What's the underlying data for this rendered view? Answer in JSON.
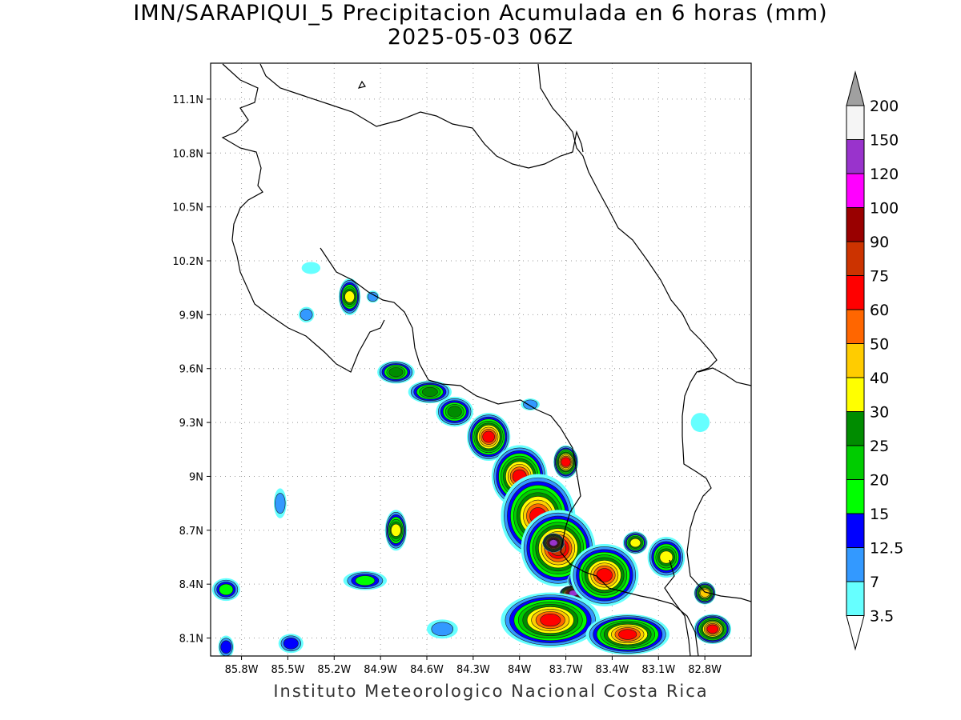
{
  "title": {
    "line1": "IMN/SARAPIQUI_5 Precipitacion Acumulada en 6 horas (mm)",
    "line2": "2025-05-03 06Z"
  },
  "footer": "Instituto Meteorologico Nacional Costa Rica",
  "map": {
    "lon_range": [
      -86.0,
      -82.5
    ],
    "lat_range": [
      8.0,
      11.3
    ],
    "grid": true,
    "lon_ticks": [
      {
        "v": -85.8,
        "label": "85.8W"
      },
      {
        "v": -85.5,
        "label": "85.5W"
      },
      {
        "v": -85.2,
        "label": "85.2W"
      },
      {
        "v": -84.9,
        "label": "84.9W"
      },
      {
        "v": -84.6,
        "label": "84.6W"
      },
      {
        "v": -84.3,
        "label": "84.3W"
      },
      {
        "v": -84.0,
        "label": "84W"
      },
      {
        "v": -83.7,
        "label": "83.7W"
      },
      {
        "v": -83.4,
        "label": "83.4W"
      },
      {
        "v": -83.1,
        "label": "83.1W"
      },
      {
        "v": -82.8,
        "label": "82.8W"
      }
    ],
    "lat_ticks": [
      {
        "v": 11.1,
        "label": "11.1N"
      },
      {
        "v": 10.8,
        "label": "10.8N"
      },
      {
        "v": 10.5,
        "label": "10.5N"
      },
      {
        "v": 10.2,
        "label": "10.2N"
      },
      {
        "v": 9.9,
        "label": "9.9N"
      },
      {
        "v": 9.6,
        "label": "9.6N"
      },
      {
        "v": 9.3,
        "label": "9.3N"
      },
      {
        "v": 9.0,
        "label": "9N"
      },
      {
        "v": 8.7,
        "label": "8.7N"
      },
      {
        "v": 8.4,
        "label": "8.4N"
      },
      {
        "v": 8.1,
        "label": "8.1N"
      }
    ]
  },
  "colorbar": {
    "labels": [
      "3.5",
      "7",
      "12.5",
      "15",
      "20",
      "25",
      "30",
      "40",
      "50",
      "60",
      "75",
      "90",
      "100",
      "120",
      "150",
      "200"
    ],
    "colors": [
      "#66ffff",
      "#3399ff",
      "#0000ff",
      "#00ff00",
      "#00cc00",
      "#008c00",
      "#ffff00",
      "#ffcc00",
      "#ff6600",
      "#ff0000",
      "#cc3300",
      "#990000",
      "#ff00ff",
      "#9933cc",
      "#f5f5f5",
      "#a0a0a0"
    ]
  },
  "precip_cells": [
    {
      "lon": -85.1,
      "lat": 10.0,
      "rx": 0.05,
      "ry": 0.09,
      "level": 6
    },
    {
      "lon": -84.95,
      "lat": 10.0,
      "rx": 0.02,
      "ry": 0.02,
      "level": 1
    },
    {
      "lon": -85.35,
      "lat": 10.16,
      "rx": 0.04,
      "ry": 0.02,
      "level": 0
    },
    {
      "lon": -85.38,
      "lat": 9.9,
      "rx": 0.03,
      "ry": 0.03,
      "level": 1
    },
    {
      "lon": -84.8,
      "lat": 9.58,
      "rx": 0.1,
      "ry": 0.05,
      "level": 5
    },
    {
      "lon": -84.58,
      "lat": 9.47,
      "rx": 0.12,
      "ry": 0.05,
      "level": 5
    },
    {
      "lon": -84.42,
      "lat": 9.36,
      "rx": 0.1,
      "ry": 0.07,
      "level": 5
    },
    {
      "lon": -84.2,
      "lat": 9.22,
      "rx": 0.12,
      "ry": 0.12,
      "level": 9
    },
    {
      "lon": -84.0,
      "lat": 9.0,
      "rx": 0.16,
      "ry": 0.16,
      "level": 9
    },
    {
      "lon": -83.88,
      "lat": 8.78,
      "rx": 0.22,
      "ry": 0.22,
      "level": 9
    },
    {
      "lon": -83.75,
      "lat": 8.6,
      "rx": 0.22,
      "ry": 0.2,
      "level": 10
    },
    {
      "lon": -83.78,
      "lat": 8.63,
      "rx": 0.05,
      "ry": 0.04,
      "level": 13
    },
    {
      "lon": -83.55,
      "lat": 8.42,
      "rx": 0.12,
      "ry": 0.05,
      "level": 13
    },
    {
      "lon": -83.65,
      "lat": 8.35,
      "rx": 0.07,
      "ry": 0.03,
      "level": 13
    },
    {
      "lon": -83.45,
      "lat": 8.45,
      "rx": 0.2,
      "ry": 0.16,
      "level": 9
    },
    {
      "lon": -83.8,
      "lat": 8.2,
      "rx": 0.3,
      "ry": 0.14,
      "level": 9
    },
    {
      "lon": -83.3,
      "lat": 8.12,
      "rx": 0.25,
      "ry": 0.1,
      "level": 9
    },
    {
      "lon": -82.75,
      "lat": 8.15,
      "rx": 0.1,
      "ry": 0.07,
      "level": 9
    },
    {
      "lon": -83.05,
      "lat": 8.55,
      "rx": 0.1,
      "ry": 0.1,
      "level": 6
    },
    {
      "lon": -83.25,
      "lat": 8.63,
      "rx": 0.06,
      "ry": 0.05,
      "level": 6
    },
    {
      "lon": -83.7,
      "lat": 9.08,
      "rx": 0.06,
      "ry": 0.08,
      "level": 9
    },
    {
      "lon": -83.93,
      "lat": 9.4,
      "rx": 0.04,
      "ry": 0.02,
      "level": 1
    },
    {
      "lon": -84.8,
      "lat": 8.7,
      "rx": 0.05,
      "ry": 0.1,
      "level": 6
    },
    {
      "lon": -85.0,
      "lat": 8.42,
      "rx": 0.12,
      "ry": 0.04,
      "level": 3
    },
    {
      "lon": -85.9,
      "lat": 8.37,
      "rx": 0.07,
      "ry": 0.05,
      "level": 3
    },
    {
      "lon": -85.55,
      "lat": 8.85,
      "rx": 0.02,
      "ry": 0.07,
      "level": 1
    },
    {
      "lon": -85.48,
      "lat": 8.07,
      "rx": 0.06,
      "ry": 0.04,
      "level": 2
    },
    {
      "lon": -85.9,
      "lat": 8.05,
      "rx": 0.03,
      "ry": 0.05,
      "level": 2
    },
    {
      "lon": -84.5,
      "lat": 8.15,
      "rx": 0.08,
      "ry": 0.04,
      "level": 1
    },
    {
      "lon": -82.83,
      "lat": 9.3,
      "rx": 0.04,
      "ry": 0.04,
      "level": 0
    },
    {
      "lon": -82.8,
      "lat": 8.35,
      "rx": 0.05,
      "ry": 0.05,
      "level": 7
    }
  ]
}
